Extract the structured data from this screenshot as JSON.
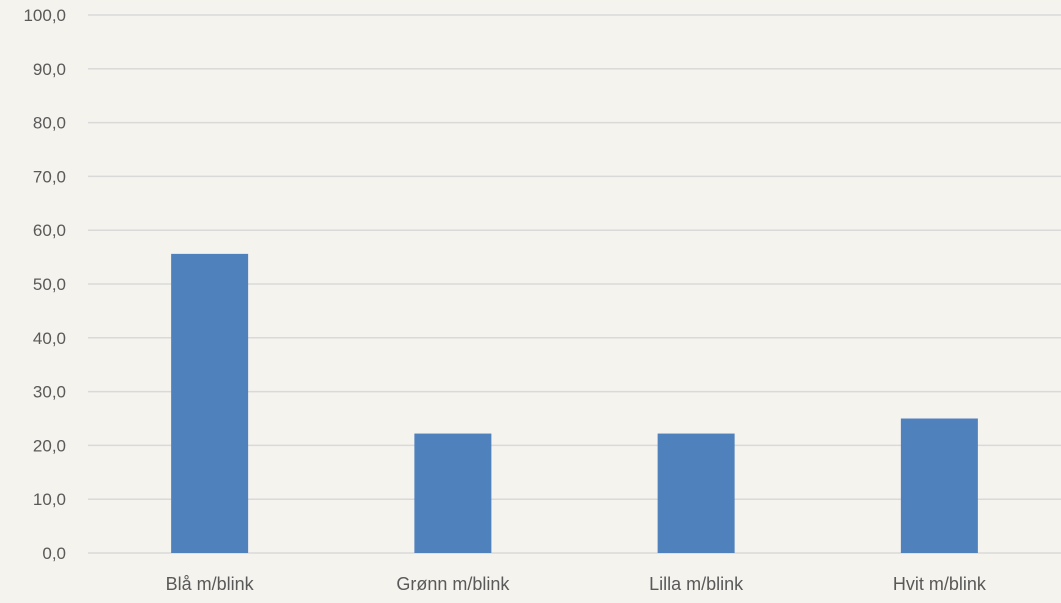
{
  "chart_data": {
    "type": "bar",
    "categories": [
      "Blå m/blink",
      "Grønn m/blink",
      "Lilla m/blink",
      "Hvit m/blink"
    ],
    "series": [
      {
        "values": [
          55.6,
          22.2,
          22.2,
          25.0
        ]
      }
    ],
    "y_ticks": [
      "0,0",
      "10,0",
      "20,0",
      "30,0",
      "40,0",
      "50,0",
      "60,0",
      "70,0",
      "80,0",
      "90,0",
      "100,0"
    ],
    "ylim": [
      0,
      100
    ],
    "grid": true,
    "legend": "none",
    "colors": {
      "bar": "#4f81bd",
      "grid": "#d9d9d9",
      "background": "#f5f3ee",
      "text": "#595959"
    }
  }
}
